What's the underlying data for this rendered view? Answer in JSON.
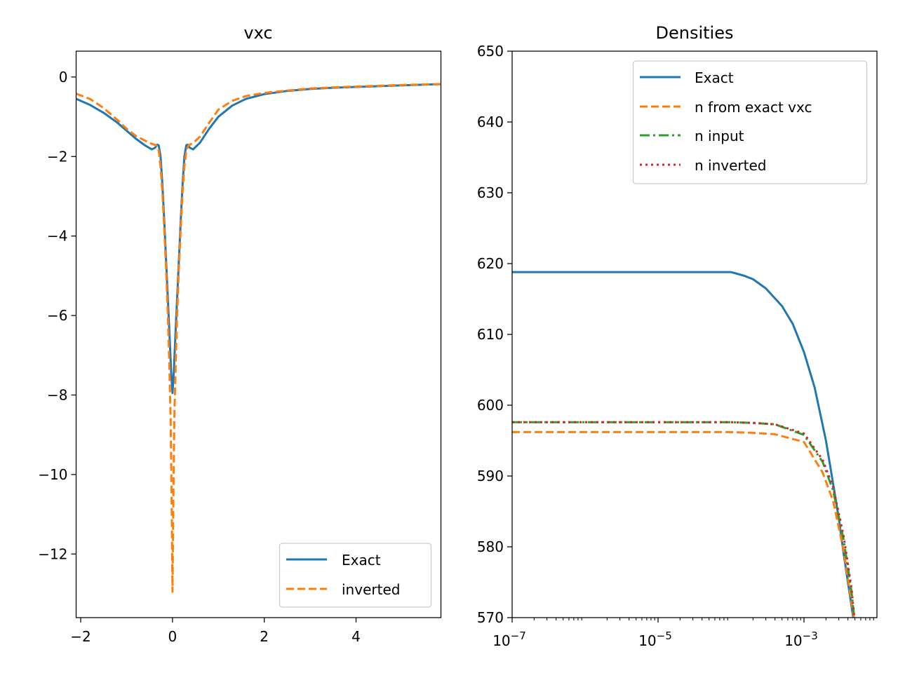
{
  "chart_data": [
    {
      "type": "line",
      "title": "vxc",
      "xlabel": "",
      "ylabel": "",
      "xlim": [
        -2.1,
        5.85
      ],
      "ylim": [
        -13.6,
        0.65
      ],
      "x_ticks": [
        -2,
        0,
        2,
        4
      ],
      "y_ticks": [
        0,
        -2,
        -4,
        -6,
        -8,
        -10,
        -12
      ],
      "legend": "lower-right",
      "grid": false,
      "series": [
        {
          "name": "Exact",
          "color": "#1f77b4",
          "style": "solid",
          "x": [
            -2.1,
            -1.8,
            -1.5,
            -1.2,
            -1.0,
            -0.8,
            -0.6,
            -0.45,
            -0.38,
            -0.33,
            -0.3,
            -0.26,
            -0.22,
            -0.18,
            -0.14,
            -0.1,
            -0.06,
            -0.03,
            0.0,
            0.03,
            0.06,
            0.1,
            0.14,
            0.18,
            0.22,
            0.26,
            0.3,
            0.33,
            0.38,
            0.45,
            0.6,
            0.8,
            1.0,
            1.3,
            1.6,
            2.0,
            2.5,
            3.0,
            3.5,
            4.0,
            4.5,
            5.0,
            5.85
          ],
          "y": [
            -0.55,
            -0.7,
            -0.9,
            -1.15,
            -1.35,
            -1.55,
            -1.72,
            -1.82,
            -1.78,
            -1.7,
            -1.72,
            -2.0,
            -2.7,
            -3.6,
            -4.6,
            -5.6,
            -6.6,
            -7.4,
            -7.95,
            -7.4,
            -6.6,
            -5.6,
            -4.6,
            -3.6,
            -2.7,
            -2.0,
            -1.72,
            -1.7,
            -1.78,
            -1.82,
            -1.65,
            -1.3,
            -1.0,
            -0.72,
            -0.55,
            -0.43,
            -0.35,
            -0.3,
            -0.27,
            -0.25,
            -0.23,
            -0.21,
            -0.18
          ]
        },
        {
          "name": "inverted",
          "color": "#ff7f0e",
          "style": "dashed",
          "x": [
            -2.1,
            -1.8,
            -1.5,
            -1.2,
            -1.0,
            -0.8,
            -0.6,
            -0.45,
            -0.35,
            -0.3,
            -0.26,
            -0.22,
            -0.18,
            -0.14,
            -0.1,
            -0.07,
            -0.04,
            -0.02,
            0.0,
            0.02,
            0.04,
            0.07,
            0.1,
            0.14,
            0.18,
            0.22,
            0.26,
            0.3,
            0.35,
            0.45,
            0.6,
            0.8,
            1.0,
            1.3,
            1.6,
            2.0,
            2.5,
            3.0,
            3.5,
            4.0,
            4.5,
            5.0,
            5.85
          ],
          "y": [
            -0.42,
            -0.55,
            -0.78,
            -1.08,
            -1.3,
            -1.48,
            -1.6,
            -1.68,
            -1.72,
            -1.85,
            -2.25,
            -2.9,
            -3.8,
            -4.8,
            -6.0,
            -7.2,
            -8.6,
            -10.5,
            -12.95,
            -10.5,
            -8.6,
            -7.2,
            -6.0,
            -4.8,
            -3.8,
            -2.9,
            -2.25,
            -1.85,
            -1.72,
            -1.66,
            -1.5,
            -1.15,
            -0.82,
            -0.6,
            -0.48,
            -0.4,
            -0.34,
            -0.29,
            -0.26,
            -0.24,
            -0.22,
            -0.2,
            -0.18
          ]
        }
      ]
    },
    {
      "type": "line",
      "title": "Densities",
      "xlabel": "",
      "ylabel": "",
      "xscale": "log",
      "xlim": [
        1e-07,
        0.01
      ],
      "ylim": [
        570,
        650
      ],
      "x_ticks": [
        1e-07,
        1e-05,
        0.001
      ],
      "x_tick_labels": [
        {
          "base": "10",
          "exp": "−7"
        },
        {
          "base": "10",
          "exp": "−5"
        },
        {
          "base": "10",
          "exp": "−3"
        }
      ],
      "y_ticks": [
        570,
        580,
        590,
        600,
        610,
        620,
        630,
        640,
        650
      ],
      "legend": "upper-right",
      "grid": false,
      "series": [
        {
          "name": "Exact",
          "color": "#1f77b4",
          "style": "solid",
          "x": [
            1e-07,
            1e-06,
            1e-05,
            5e-05,
            0.0001,
            0.00015,
            0.0002,
            0.0003,
            0.0005,
            0.0007,
            0.001,
            0.0014,
            0.002,
            0.0025,
            0.003,
            0.0035,
            0.004,
            0.0045,
            0.0049
          ],
          "y": [
            618.8,
            618.8,
            618.8,
            618.8,
            618.8,
            618.3,
            617.8,
            616.5,
            614.0,
            611.5,
            607.5,
            602.5,
            595.0,
            589.0,
            584.0,
            579.0,
            575.0,
            571.5,
            569.0
          ]
        },
        {
          "name": "n from exact vxc",
          "color": "#ff7f0e",
          "style": "dashed",
          "x": [
            1e-07,
            1e-06,
            1e-05,
            0.0001,
            0.0002,
            0.0004,
            0.001,
            0.0018,
            0.0025,
            0.0035,
            0.0045,
            0.005
          ],
          "y": [
            596.2,
            596.2,
            596.2,
            596.2,
            596.1,
            595.9,
            594.8,
            590.5,
            586.5,
            579.5,
            572.0,
            569.0
          ]
        },
        {
          "name": "n input",
          "color": "#2ca02c",
          "style": "dashdot",
          "x": [
            1e-07,
            1e-06,
            1e-05,
            0.0001,
            0.0002,
            0.0004,
            0.001,
            0.0018,
            0.0025,
            0.0035,
            0.0045,
            0.005
          ],
          "y": [
            597.6,
            597.6,
            597.6,
            597.6,
            597.5,
            597.3,
            595.8,
            592.0,
            588.0,
            581.0,
            573.5,
            569.0
          ]
        },
        {
          "name": "n inverted",
          "color": "#d62728",
          "style": "dotted",
          "x": [
            1e-07,
            1e-06,
            1e-05,
            0.0001,
            0.0002,
            0.0004,
            0.001,
            0.0018,
            0.0025,
            0.0035,
            0.0045,
            0.005
          ],
          "y": [
            597.6,
            597.6,
            597.6,
            597.6,
            597.5,
            597.3,
            596.0,
            592.3,
            588.5,
            581.5,
            574.0,
            569.0
          ]
        }
      ]
    }
  ]
}
